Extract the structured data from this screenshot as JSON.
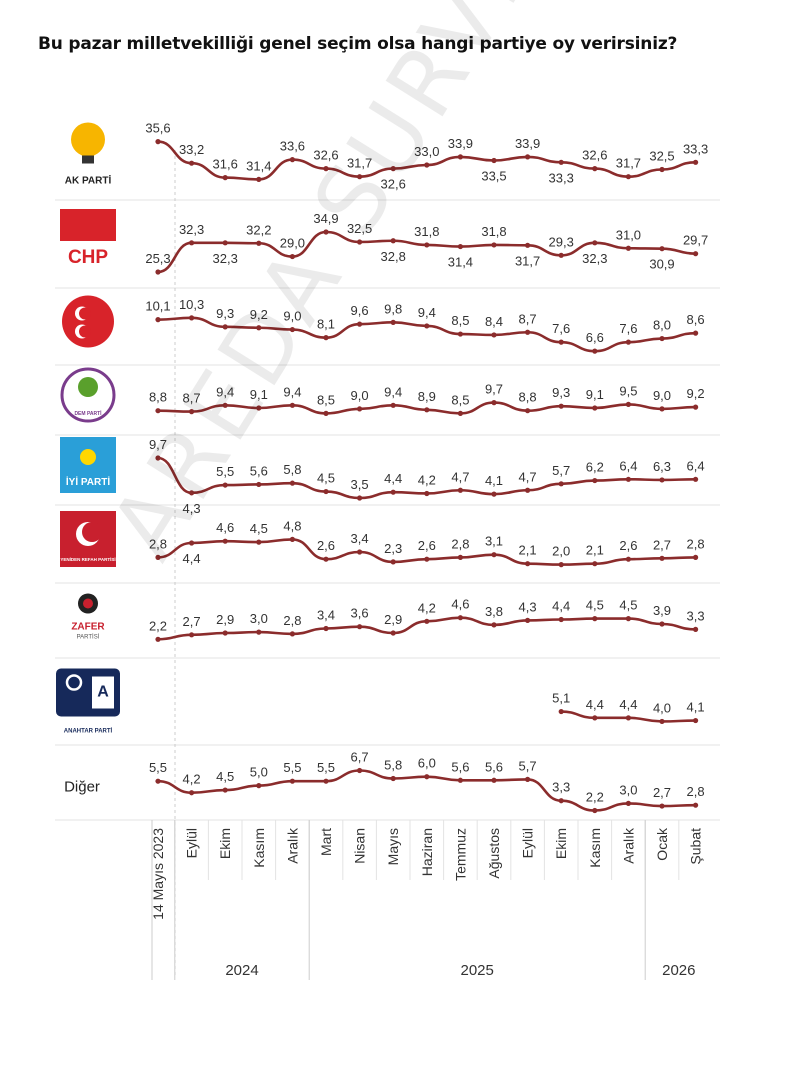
{
  "title": "Bu pazar milletvekilliği genel seçim olsa hangi partiye oy verirsiniz?",
  "watermark": "AREDA SURVEY",
  "colors": {
    "line": "#8b2c2c",
    "grid": "#e3e3e3",
    "text": "#333333"
  },
  "chart_data": {
    "type": "line",
    "title": "Bu pazar milletvekilliği genel seçim olsa hangi partiye oy verirsiniz?",
    "categories": [
      "14 Mayıs 2023",
      "Eylül",
      "Ekim",
      "Kasım",
      "Aralık",
      "Mart",
      "Nisan",
      "Mayıs",
      "Haziran",
      "Temmuz",
      "Ağustos",
      "Eylül",
      "Ekim",
      "Kasım",
      "Aralık",
      "Ocak",
      "Şubat"
    ],
    "year_groups": [
      {
        "label": "2024",
        "from": 1,
        "to": 4
      },
      {
        "label": "2025",
        "from": 5,
        "to": 14
      },
      {
        "label": "2026",
        "from": 15,
        "to": 16
      }
    ],
    "grid": false,
    "series": [
      {
        "name": "AK PARTİ",
        "logo": "ak-parti-logo",
        "values": [
          35.6,
          33.2,
          31.6,
          31.4,
          33.6,
          32.6,
          31.7,
          32.6,
          33.0,
          33.9,
          33.5,
          33.9,
          33.3,
          32.6,
          31.7,
          32.5,
          33.3
        ]
      },
      {
        "name": "CHP",
        "logo": "chp-logo",
        "values": [
          25.3,
          32.3,
          32.3,
          32.2,
          29.0,
          34.9,
          32.5,
          32.8,
          31.8,
          31.4,
          31.8,
          31.7,
          29.3,
          32.3,
          31.0,
          30.9,
          29.7
        ]
      },
      {
        "name": "MHP",
        "logo": "mhp-logo",
        "values": [
          10.1,
          10.3,
          9.3,
          9.2,
          9.0,
          8.1,
          9.6,
          9.8,
          9.4,
          8.5,
          8.4,
          8.7,
          7.6,
          6.6,
          7.6,
          8.0,
          8.6
        ]
      },
      {
        "name": "DEM PARTİ",
        "logo": "dem-parti-logo",
        "values": [
          8.8,
          8.7,
          9.4,
          9.1,
          9.4,
          8.5,
          9.0,
          9.4,
          8.9,
          8.5,
          9.7,
          8.8,
          9.3,
          9.1,
          9.5,
          9.0,
          9.2
        ]
      },
      {
        "name": "İYİ PARTİ",
        "logo": "iyi-parti-logo",
        "values": [
          9.7,
          4.3,
          5.5,
          5.6,
          5.8,
          4.5,
          3.5,
          4.4,
          4.2,
          4.7,
          4.1,
          4.7,
          5.7,
          6.2,
          6.4,
          6.3,
          6.4
        ]
      },
      {
        "name": "YENİDEN REFAH PARTİSİ",
        "logo": "yeniden-refah-logo",
        "values": [
          2.8,
          4.4,
          4.6,
          4.5,
          4.8,
          2.6,
          3.4,
          2.3,
          2.6,
          2.8,
          3.1,
          2.1,
          2.0,
          2.1,
          2.6,
          2.7,
          2.8
        ]
      },
      {
        "name": "ZAFER PARTİSİ",
        "logo": "zafer-partisi-logo",
        "values": [
          2.2,
          2.7,
          2.9,
          3.0,
          2.8,
          3.4,
          3.6,
          2.9,
          4.2,
          4.6,
          3.8,
          4.3,
          4.4,
          4.5,
          4.5,
          3.9,
          3.3
        ]
      },
      {
        "name": "ANAHTAR PARTİ",
        "logo": "anahtar-parti-logo",
        "values": [
          null,
          null,
          null,
          null,
          null,
          null,
          null,
          null,
          null,
          null,
          null,
          null,
          5.1,
          4.4,
          4.4,
          4.0,
          4.1
        ]
      },
      {
        "name": "Diğer",
        "values": [
          5.5,
          4.2,
          4.5,
          5.0,
          5.5,
          5.5,
          6.7,
          5.8,
          6.0,
          5.6,
          5.6,
          5.7,
          3.3,
          2.2,
          3.0,
          2.7,
          2.8
        ]
      }
    ]
  }
}
